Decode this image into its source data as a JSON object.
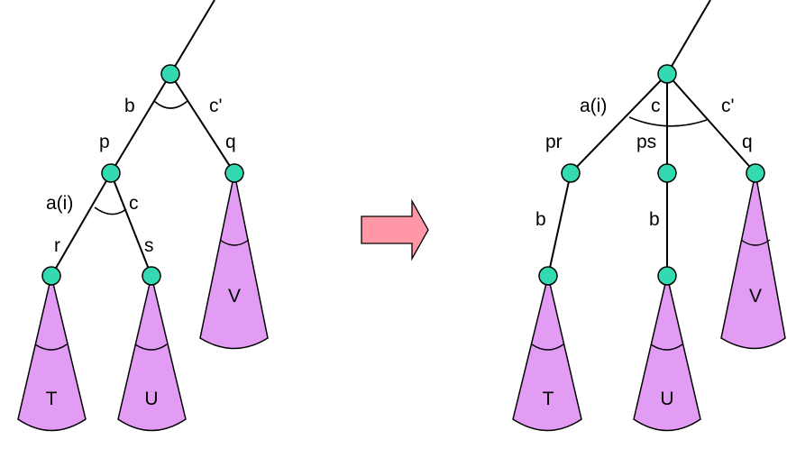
{
  "left_tree": {
    "edge_labels": {
      "b": "b",
      "c_prime": "c'",
      "p": "p",
      "q": "q",
      "a_i": "a(i)",
      "c": "c",
      "r": "r",
      "s": "s"
    },
    "subtrees": [
      "T",
      "U",
      "V"
    ]
  },
  "right_tree": {
    "edge_labels": {
      "a_i": "a(i)",
      "c": "c",
      "c_prime": "c'",
      "pr": "pr",
      "ps": "ps",
      "q": "q",
      "b_left": "b",
      "b_mid": "b"
    },
    "subtrees": [
      "T",
      "U",
      "V"
    ]
  },
  "colors": {
    "node": "#33d9b0",
    "subtree": "#e39cf4",
    "arrow": "#ff97a6"
  }
}
